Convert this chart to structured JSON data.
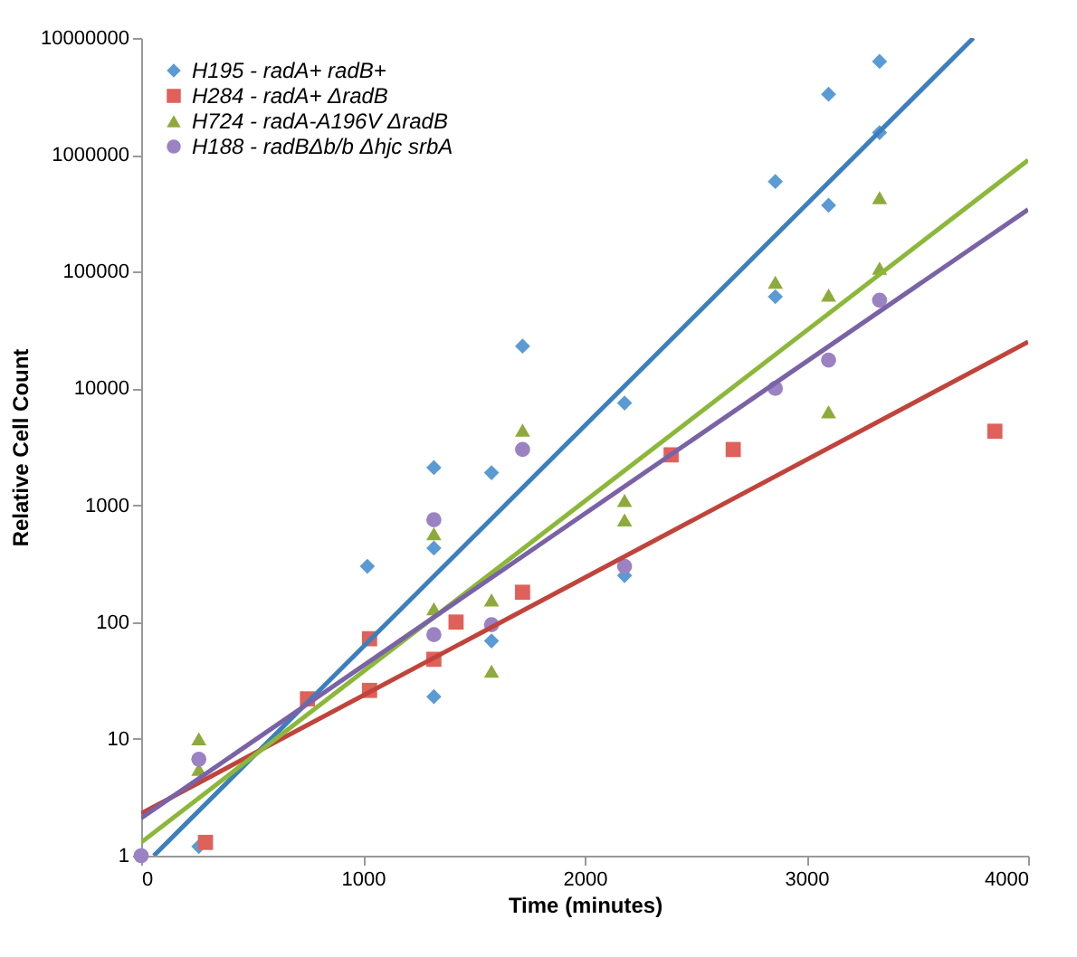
{
  "chart_data": {
    "type": "scatter",
    "xlabel": "Time (minutes)",
    "ylabel": "Relative Cell Count",
    "log": "y",
    "xlim": [
      0,
      4000
    ],
    "xticks": [
      0,
      1000,
      2000,
      3000,
      4000
    ],
    "ylim": [
      1,
      10000000
    ],
    "yticks": [
      1,
      10,
      100,
      1000,
      10000,
      100000,
      1000000,
      10000000
    ],
    "grid": false,
    "legend": "top left",
    "series": [
      {
        "name": "H195 - radA+ radB+",
        "marker": "diamond",
        "color": "#5b9bd5",
        "x": [
          260,
          1020,
          1320,
          1320,
          1320,
          1580,
          1580,
          1720,
          2180,
          2180,
          2860,
          2860,
          3100,
          3100,
          3330,
          3330
        ],
        "values": [
          1.2,
          300,
          2100,
          430,
          23,
          1900,
          69,
          23000,
          7500,
          250,
          590000,
          61000,
          370000,
          3300000,
          6300000,
          1550000
        ]
      },
      {
        "name": "H284 - radA+ ΔradB",
        "marker": "square",
        "color": "#e0605a",
        "x": [
          290,
          750,
          1030,
          1030,
          1320,
          1420,
          1720,
          2390,
          2670,
          3850
        ],
        "values": [
          1.3,
          22,
          72,
          26,
          48,
          100,
          180,
          2700,
          3000,
          4300
        ]
      },
      {
        "name": "H724 - radA-A196V ΔradB",
        "marker": "triangle",
        "color": "#8faa3c",
        "x": [
          260,
          260,
          1320,
          1320,
          1580,
          1580,
          1720,
          2180,
          2180,
          2860,
          3100,
          3100,
          3330,
          3330
        ],
        "values": [
          10,
          5.5,
          570,
          130,
          155,
          38,
          4400,
          1100,
          750,
          81000,
          63000,
          6300,
          430000,
          107000
        ]
      },
      {
        "name": "H188 - radBΔb/b Δhjc srbA",
        "marker": "circle",
        "color": "#9b82c2",
        "x": [
          0,
          260,
          1320,
          1320,
          1580,
          1720,
          2180,
          2860,
          3100,
          3330
        ],
        "values": [
          1,
          6.7,
          750,
          78,
          95,
          3000,
          300,
          10000,
          17500,
          57000
        ]
      },
      {
        "type": "line",
        "color": "#3d7fbd",
        "x": [
          57,
          3753
        ],
        "values": [
          1,
          10000000
        ]
      },
      {
        "type": "line",
        "color": "#c0443c",
        "x": [
          0,
          4000
        ],
        "values": [
          2.3,
          25000
        ]
      },
      {
        "type": "line",
        "color": "#8cb83a",
        "x": [
          0,
          4000
        ],
        "values": [
          1.3,
          900000
        ]
      },
      {
        "type": "line",
        "color": "#7a62a6",
        "x": [
          0,
          4000
        ],
        "values": [
          2.1,
          340000
        ]
      }
    ]
  }
}
